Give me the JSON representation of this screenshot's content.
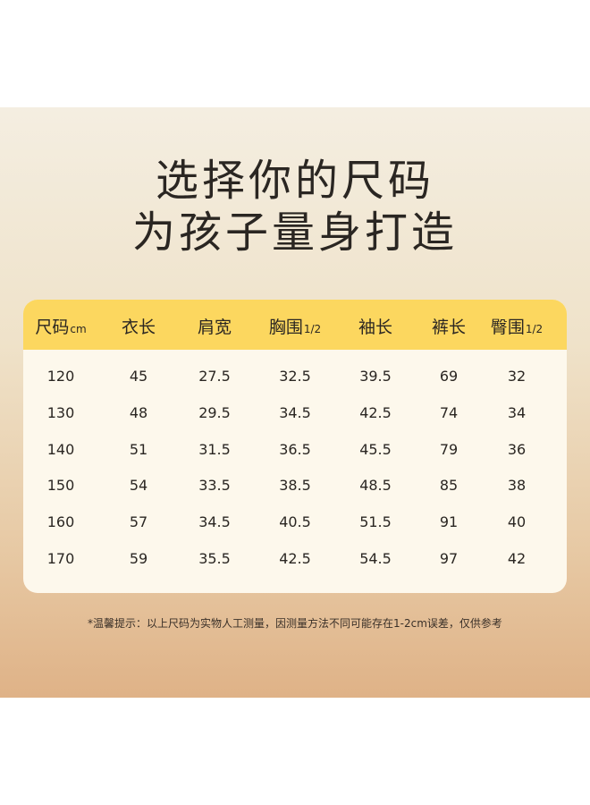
{
  "title_line1": "选择你的尺码",
  "title_line2": "为孩子量身打造",
  "table": {
    "headers": [
      {
        "label": "尺码",
        "sub": "cm"
      },
      {
        "label": "衣长",
        "sub": ""
      },
      {
        "label": "肩宽",
        "sub": ""
      },
      {
        "label": "胸围",
        "sub": "1/2"
      },
      {
        "label": "袖长",
        "sub": ""
      },
      {
        "label": "裤长",
        "sub": ""
      },
      {
        "label": "臀围",
        "sub": "1/2"
      }
    ],
    "rows": [
      [
        "120",
        "45",
        "27.5",
        "32.5",
        "39.5",
        "69",
        "32"
      ],
      [
        "130",
        "48",
        "29.5",
        "34.5",
        "42.5",
        "74",
        "34"
      ],
      [
        "140",
        "51",
        "31.5",
        "36.5",
        "45.5",
        "79",
        "36"
      ],
      [
        "150",
        "54",
        "33.5",
        "38.5",
        "48.5",
        "85",
        "38"
      ],
      [
        "160",
        "57",
        "34.5",
        "40.5",
        "51.5",
        "91",
        "40"
      ],
      [
        "170",
        "59",
        "35.5",
        "42.5",
        "54.5",
        "97",
        "42"
      ]
    ]
  },
  "note": "*温馨提示：以上尺码为实物人工测量，因测量方法不同可能存在1-2cm误差，仅供参考",
  "colors": {
    "header": "#fcd75f",
    "table_bg": "#fdf8ec"
  }
}
